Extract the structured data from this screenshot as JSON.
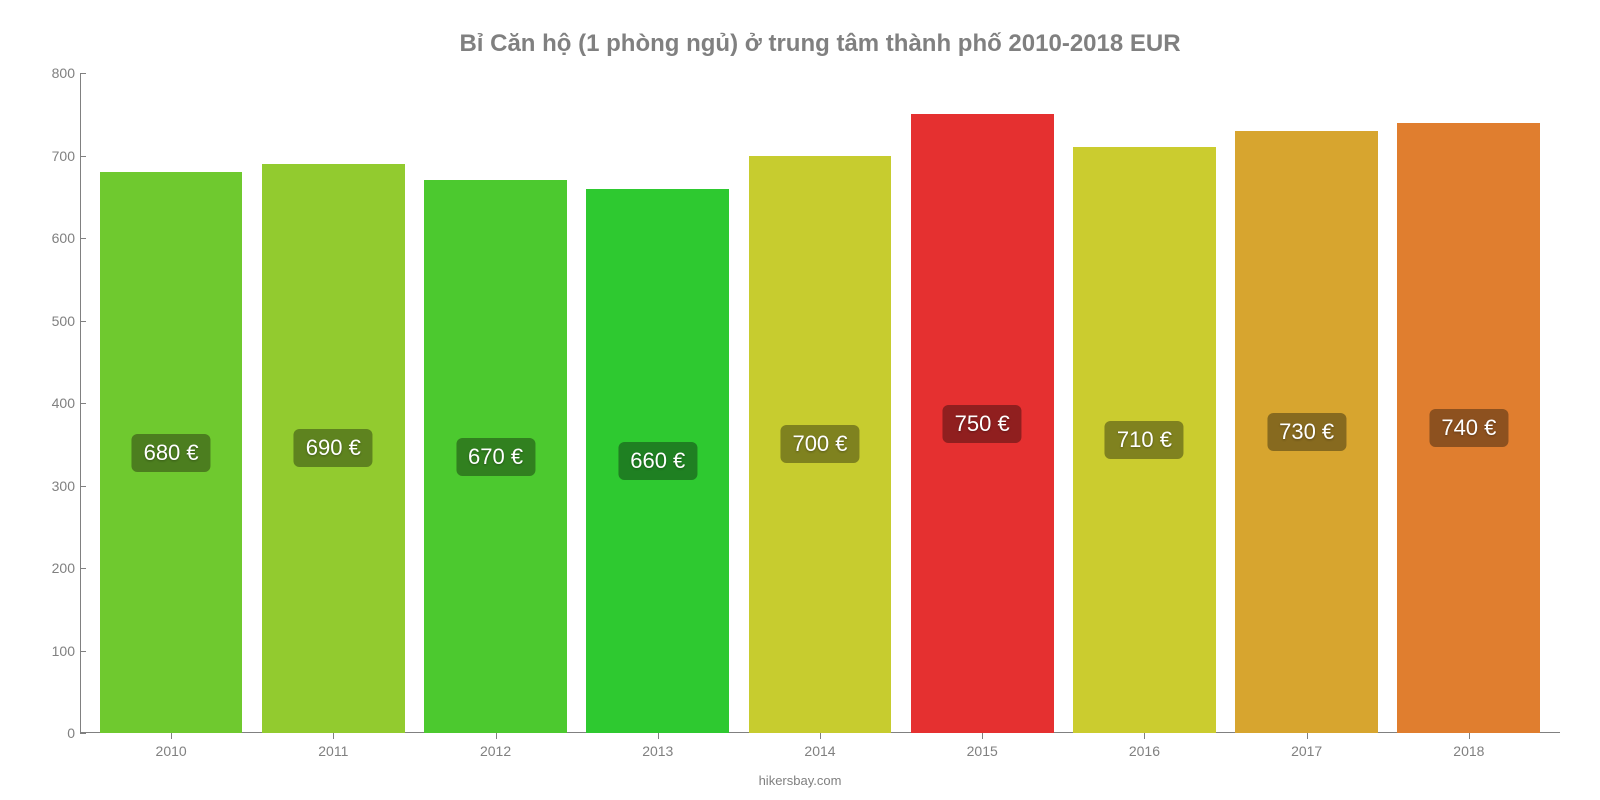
{
  "chart": {
    "type": "bar",
    "title": "Bỉ Căn hộ (1 phòng ngủ) ở trung tâm thành phố 2010-2018 EUR",
    "title_color": "#808080",
    "title_fontsize": 24,
    "background_color": "#ffffff",
    "axis_color": "#808080",
    "label_fontsize": 14,
    "bar_label_fontsize": 22,
    "bar_label_text_color": "#ffffff",
    "ylim": [
      0,
      800
    ],
    "ytick_step": 100,
    "yticks": [
      0,
      100,
      200,
      300,
      400,
      500,
      600,
      700,
      800
    ],
    "bar_width": 0.88,
    "categories": [
      "2010",
      "2011",
      "2012",
      "2013",
      "2014",
      "2015",
      "2016",
      "2017",
      "2018"
    ],
    "values": [
      680,
      690,
      670,
      660,
      700,
      750,
      710,
      730,
      740
    ],
    "value_labels": [
      "680 €",
      "690 €",
      "670 €",
      "660 €",
      "700 €",
      "750 €",
      "710 €",
      "730 €",
      "740 €"
    ],
    "bar_colors": [
      "#6fc92f",
      "#92cb2f",
      "#4cc92f",
      "#2ec930",
      "#c7cc2f",
      "#e53030",
      "#cbcc2f",
      "#d7a52f",
      "#e07e2f"
    ],
    "label_bg_colors": [
      "#4c7e1f",
      "#5e831f",
      "#31801f",
      "#1f8022",
      "#7f821f",
      "#901f1f",
      "#80821f",
      "#876a1f",
      "#8d511f"
    ],
    "footer": "hikersbay.com"
  }
}
